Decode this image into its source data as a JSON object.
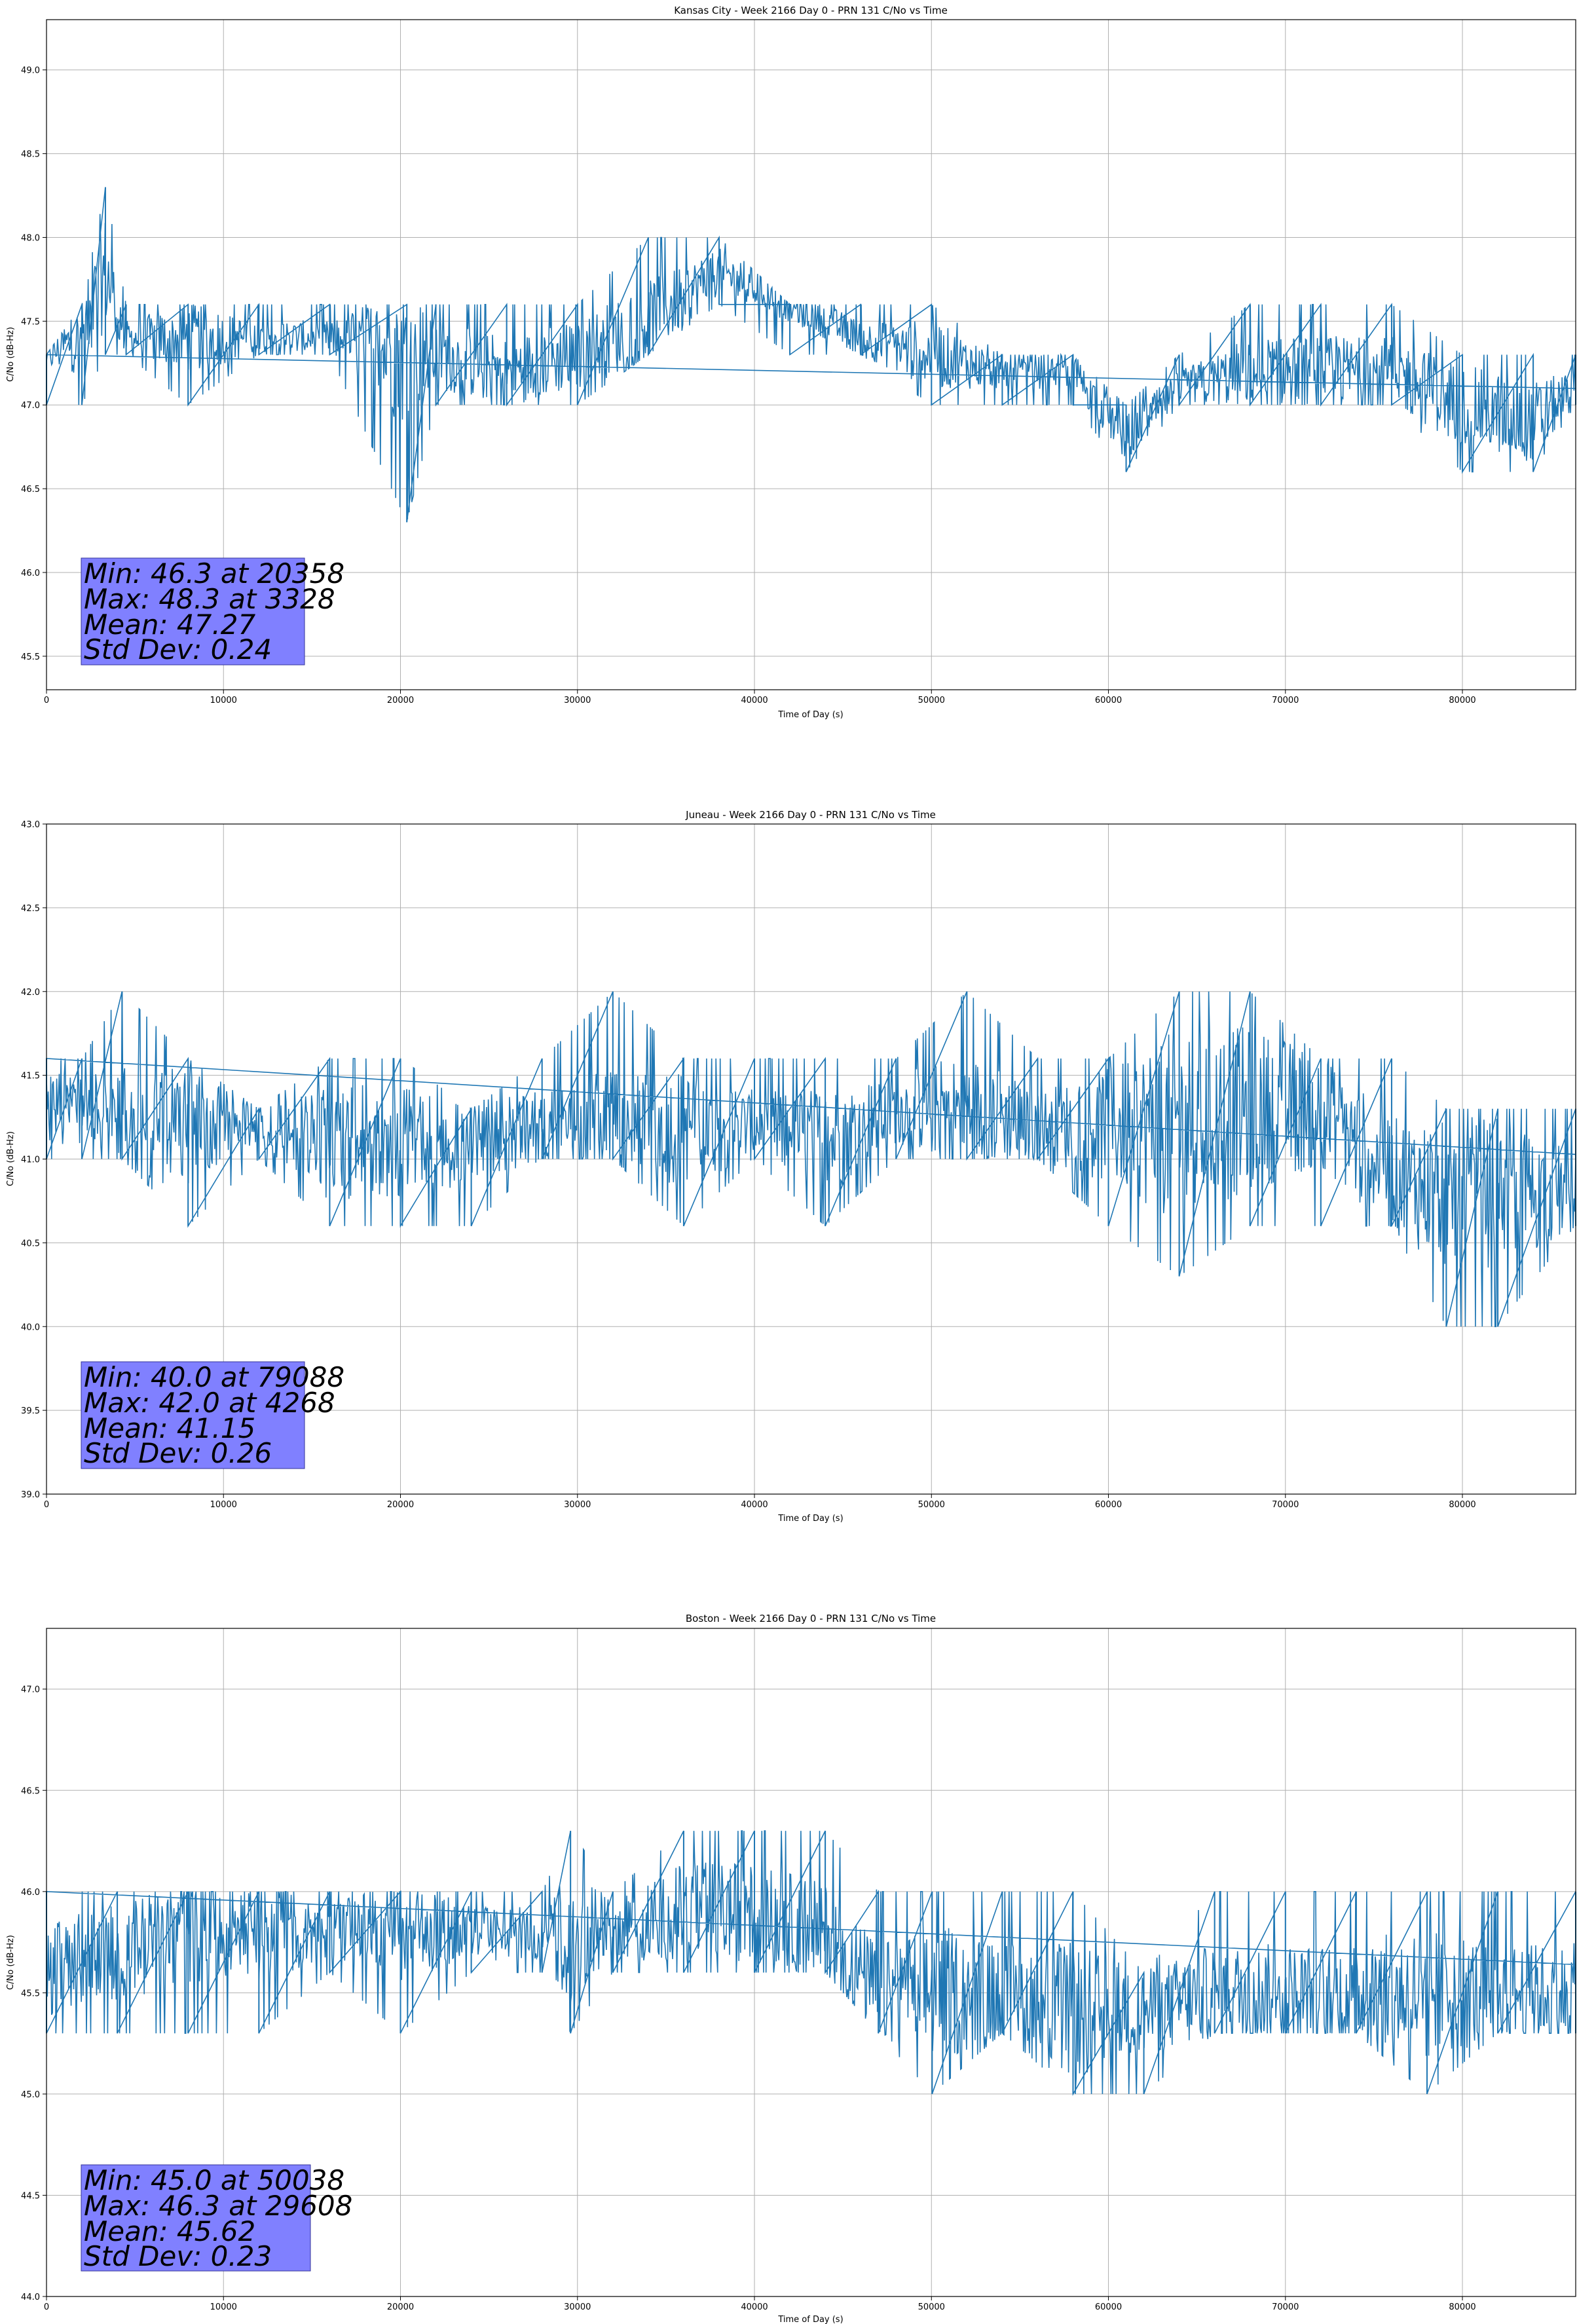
{
  "colors": {
    "series": "#1f77b4",
    "grid": "#b0b0b0",
    "stat_box_fill": "#8080ff",
    "stat_box_edge": "#333399",
    "axes": "#000000"
  },
  "chart_data": [
    {
      "type": "line",
      "title": "Kansas City - Week 2166 Day 0 - PRN 131 C/No vs Time",
      "xlabel": "Time of Day (s)",
      "ylabel": "C/No (dB-Hz)",
      "xlim": [
        0,
        86400
      ],
      "ylim": [
        45.3,
        49.3
      ],
      "xticks": [
        0,
        10000,
        20000,
        30000,
        40000,
        50000,
        60000,
        70000,
        80000
      ],
      "yticks": [
        45.5,
        46.0,
        46.5,
        47.0,
        47.5,
        48.0,
        48.5,
        49.0
      ],
      "grid": true,
      "series": [
        {
          "x": [
            0,
            2000,
            3328,
            4500,
            8000,
            12000,
            16000,
            20358,
            22000,
            26000,
            30000,
            34000,
            38000,
            42000,
            46000,
            50000,
            54000,
            58000,
            61000,
            64000,
            68000,
            72000,
            76000,
            80000,
            84000,
            86400
          ],
          "y": [
            47.3,
            47.4,
            47.8,
            47.4,
            47.4,
            47.4,
            47.4,
            47.3,
            47.3,
            47.2,
            47.3,
            47.5,
            47.8,
            47.6,
            47.4,
            47.3,
            47.2,
            47.2,
            46.8,
            47.1,
            47.2,
            47.2,
            47.2,
            47.0,
            46.9,
            47.1
          ],
          "low": [
            47.0,
            47.0,
            47.3,
            47.3,
            47.0,
            47.3,
            47.3,
            46.3,
            47.0,
            47.0,
            47.0,
            47.3,
            47.6,
            47.3,
            47.3,
            47.0,
            47.0,
            47.0,
            46.6,
            47.0,
            47.0,
            47.0,
            47.0,
            46.6,
            46.6,
            47.0
          ],
          "high": [
            47.3,
            47.6,
            48.3,
            47.6,
            47.6,
            47.6,
            47.6,
            47.6,
            47.6,
            47.6,
            47.6,
            48.0,
            48.0,
            47.6,
            47.6,
            47.6,
            47.3,
            47.3,
            47.0,
            47.3,
            47.6,
            47.6,
            47.6,
            47.3,
            47.3,
            47.3
          ]
        }
      ],
      "stats": {
        "min": "Min: 46.3 at 20358",
        "max": "Max: 48.3 at 3328",
        "mean": "Mean: 47.27",
        "std": "Std Dev: 0.24"
      }
    },
    {
      "type": "line",
      "title": "Juneau - Week 2166 Day 0 - PRN 131 C/No vs Time",
      "xlabel": "Time of Day (s)",
      "ylabel": "C/No (dB-Hz)",
      "xlim": [
        0,
        86400
      ],
      "ylim": [
        39.0,
        43.0
      ],
      "xticks": [
        0,
        10000,
        20000,
        30000,
        40000,
        50000,
        60000,
        70000,
        80000
      ],
      "yticks": [
        39.0,
        39.5,
        40.0,
        40.5,
        41.0,
        41.5,
        42.0,
        42.5,
        43.0
      ],
      "grid": true,
      "series": [
        {
          "x": [
            0,
            2000,
            4268,
            8000,
            12000,
            16000,
            20000,
            24000,
            28000,
            32000,
            36000,
            40000,
            44000,
            48000,
            52000,
            56000,
            60000,
            64000,
            68000,
            72000,
            76000,
            79088,
            82000,
            86400
          ],
          "y": [
            41.3,
            41.3,
            41.2,
            41.2,
            41.2,
            41.1,
            41.1,
            41.1,
            41.2,
            41.2,
            41.2,
            41.2,
            41.1,
            41.3,
            41.3,
            41.2,
            41.2,
            41.2,
            41.3,
            41.3,
            40.9,
            40.8,
            40.8,
            40.8
          ],
          "low": [
            41.0,
            41.0,
            41.0,
            40.6,
            41.0,
            40.6,
            40.6,
            40.6,
            41.0,
            41.0,
            40.6,
            41.0,
            40.6,
            41.0,
            41.0,
            41.0,
            40.6,
            40.3,
            40.6,
            40.6,
            40.6,
            40.0,
            40.0,
            40.6
          ],
          "high": [
            41.6,
            41.6,
            42.0,
            41.6,
            41.3,
            41.6,
            41.6,
            41.3,
            41.6,
            42.0,
            41.6,
            41.6,
            41.6,
            41.6,
            42.0,
            41.6,
            41.6,
            42.0,
            42.0,
            41.6,
            41.6,
            41.3,
            41.3,
            41.3
          ]
        }
      ],
      "stats": {
        "min": "Min: 40.0 at 79088",
        "max": "Max: 42.0 at 4268",
        "mean": "Mean: 41.15",
        "std": "Std Dev: 0.26"
      }
    },
    {
      "type": "line",
      "title": "Boston - Week 2166 Day 0 - PRN 131 C/No vs Time",
      "xlabel": "Time of Day (s)",
      "ylabel": "C/No (dB-Hz)",
      "xlim": [
        0,
        86400
      ],
      "ylim": [
        44.0,
        47.3
      ],
      "xticks": [
        0,
        10000,
        20000,
        30000,
        40000,
        50000,
        60000,
        70000,
        80000
      ],
      "yticks": [
        44.0,
        44.5,
        45.0,
        45.5,
        46.0,
        46.5,
        47.0
      ],
      "grid": true,
      "series": [
        {
          "x": [
            0,
            4000,
            8000,
            12000,
            16000,
            20000,
            24000,
            28000,
            29608,
            32000,
            36000,
            40000,
            44000,
            47000,
            50038,
            54000,
            58000,
            62000,
            66000,
            70000,
            74000,
            78000,
            82000,
            86400
          ],
          "y": [
            45.6,
            45.7,
            45.8,
            45.8,
            45.8,
            45.8,
            45.8,
            45.8,
            45.8,
            45.8,
            45.9,
            45.9,
            45.8,
            45.5,
            45.5,
            45.5,
            45.4,
            45.4,
            45.5,
            45.5,
            45.5,
            45.5,
            45.5,
            45.5
          ],
          "low": [
            45.3,
            45.3,
            45.3,
            45.3,
            45.6,
            45.3,
            45.6,
            45.6,
            45.3,
            45.6,
            45.6,
            45.6,
            45.6,
            45.3,
            45.0,
            45.3,
            45.0,
            45.0,
            45.3,
            45.3,
            45.3,
            45.0,
            45.3,
            45.3
          ],
          "high": [
            46.0,
            46.0,
            46.0,
            46.0,
            46.0,
            46.0,
            46.0,
            46.0,
            46.3,
            46.0,
            46.3,
            46.3,
            46.3,
            46.0,
            46.0,
            46.0,
            46.0,
            45.6,
            46.0,
            46.0,
            46.0,
            46.0,
            46.0,
            46.0
          ]
        }
      ],
      "stats": {
        "min": "Min: 45.0 at 50038",
        "max": "Max: 46.3 at 29608",
        "mean": "Mean: 45.62",
        "std": "Std Dev: 0.23"
      }
    }
  ]
}
